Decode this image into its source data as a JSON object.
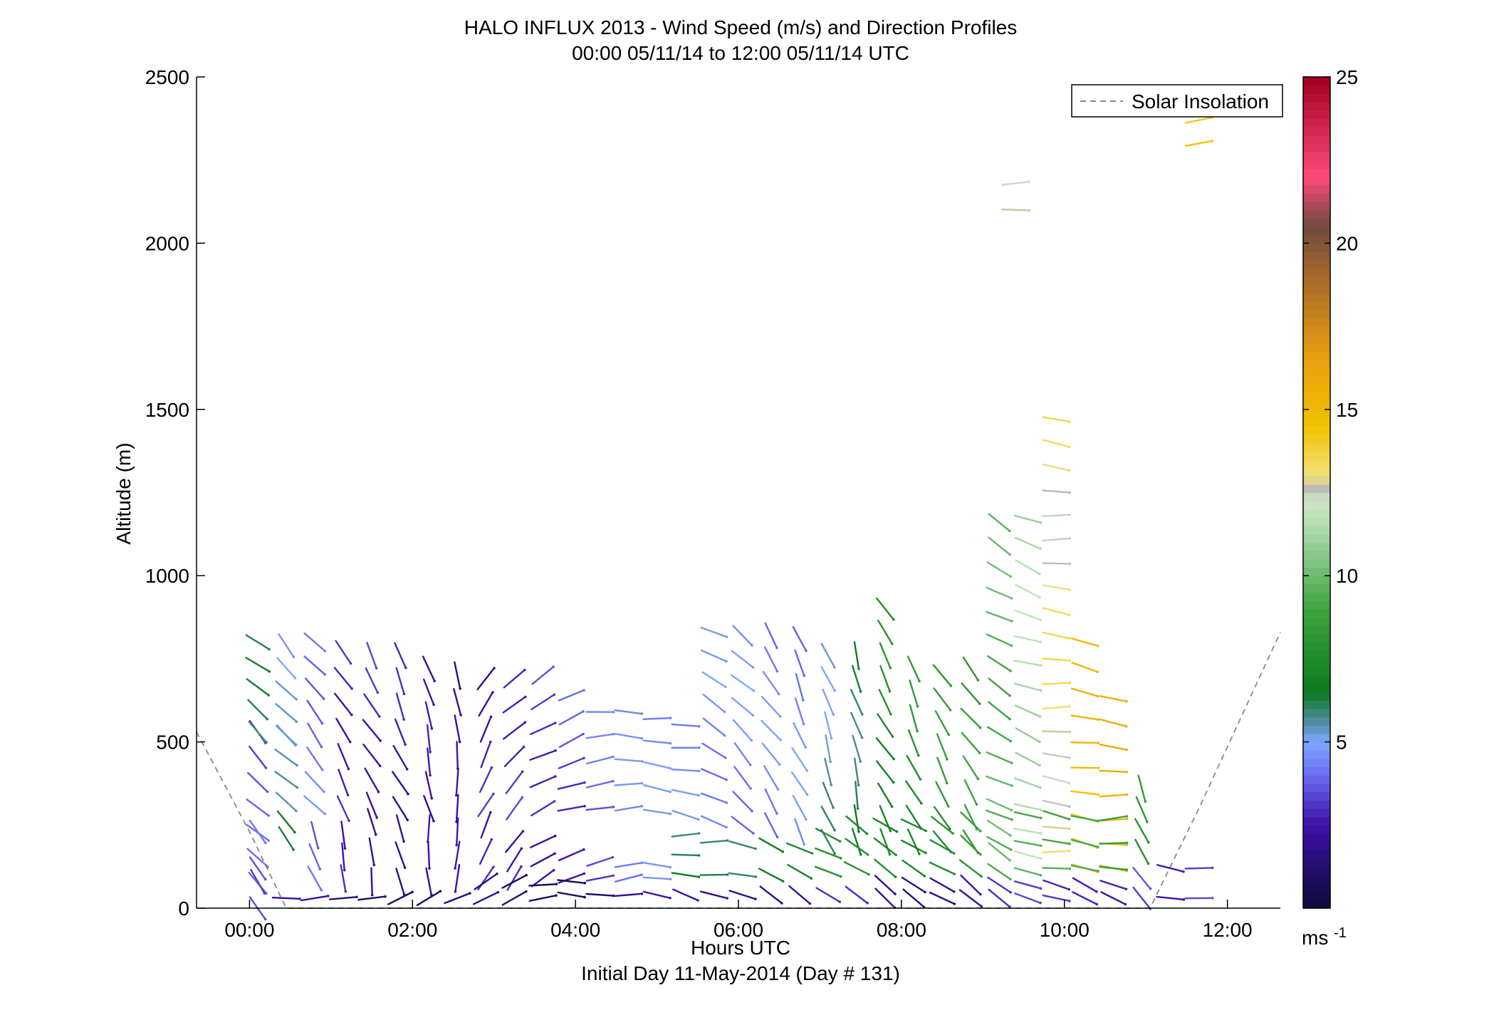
{
  "chart_data": {
    "type": "scatter",
    "plot_kind": "wind barbs / direction sticks colored by speed",
    "title": "HALO INFLUX 2013 - Wind Speed (m/s) and Direction Profiles",
    "subtitle": "00:00 05/11/14 to 12:00 05/11/14  UTC",
    "xlabel": "Hours UTC",
    "xlabel2": "Initial Day 11-May-2014 (Day # 131)",
    "ylabel": "Altitude (m)",
    "xlim": [
      -0.65,
      12.65
    ],
    "ylim": [
      0,
      2500
    ],
    "x_ticks": [
      0,
      2,
      4,
      6,
      8,
      10,
      12
    ],
    "x_tick_labels": [
      "00:00",
      "02:00",
      "04:00",
      "06:00",
      "08:00",
      "10:00",
      "12:00"
    ],
    "y_ticks": [
      0,
      500,
      1000,
      1500,
      2000,
      2500
    ],
    "y_tick_labels": [
      "0",
      "500",
      "1000",
      "1500",
      "2000",
      "2500"
    ],
    "grid": false,
    "legend_position": "top-right",
    "legend": [
      {
        "label": "Solar Insolation",
        "style": "dashed",
        "color": "#888888"
      }
    ],
    "colorbar": {
      "range": [
        0,
        25
      ],
      "ticks": [
        5,
        10,
        15,
        20,
        25
      ],
      "tick_labels": [
        "5",
        "10",
        "15",
        "20",
        "25"
      ],
      "units_label": "ms",
      "units_superscript": "-1",
      "stops": [
        [
          0,
          "#0b0b3a"
        ],
        [
          2.5,
          "#3d10a8"
        ],
        [
          4.0,
          "#6b6cf0"
        ],
        [
          5.0,
          "#7fa7ff"
        ],
        [
          5.6,
          "#4f8ea0"
        ],
        [
          6.5,
          "#0b7a1f"
        ],
        [
          9.0,
          "#3fa43f"
        ],
        [
          11.5,
          "#b0dcb0"
        ],
        [
          12.3,
          "#cfe6c8"
        ],
        [
          12.6,
          "#b9b9b9"
        ],
        [
          13.0,
          "#f0e27a"
        ],
        [
          14.5,
          "#f2c200"
        ],
        [
          16.5,
          "#e8a010"
        ],
        [
          19.0,
          "#a8682a"
        ],
        [
          20.5,
          "#6e4a3e"
        ],
        [
          22.0,
          "#ff4a7a"
        ],
        [
          25.0,
          "#a0001e"
        ]
      ]
    },
    "solar_insolation": [
      {
        "x": -0.65,
        "y": 530
      },
      {
        "x": 0.0,
        "y": 230
      },
      {
        "x": 0.45,
        "y": 0
      },
      {
        "x": 11.05,
        "y": 0
      },
      {
        "x": 11.65,
        "y": 300
      },
      {
        "x": 12.65,
        "y": 830
      }
    ],
    "profiles": [
      {
        "x": 0.1,
        "segments": [
          [
            0,
            530,
            3.5,
            135
          ],
          [
            530,
            800,
            5.8,
            130
          ],
          [
            230,
            230,
            4.2,
            135
          ],
          [
            80,
            120,
            3.2,
            140
          ]
        ]
      },
      {
        "x": 0.45,
        "segments": [
          [
            320,
            520,
            5.0,
            135
          ],
          [
            520,
            790,
            4.8,
            140
          ],
          [
            210,
            260,
            5.8,
            150
          ],
          [
            30,
            30,
            1.6,
            95
          ]
        ]
      },
      {
        "x": 0.8,
        "segments": [
          [
            310,
            800,
            4.2,
            140
          ],
          [
            90,
            220,
            3.6,
            160
          ],
          [
            30,
            30,
            1.8,
            90
          ]
        ]
      },
      {
        "x": 1.15,
        "segments": [
          [
            300,
            770,
            3.0,
            150
          ],
          [
            90,
            220,
            2.9,
            165
          ],
          [
            30,
            40,
            1.5,
            80
          ]
        ]
      },
      {
        "x": 1.5,
        "segments": [
          [
            310,
            760,
            2.8,
            150
          ],
          [
            80,
            260,
            2.6,
            170
          ],
          [
            30,
            50,
            1.4,
            75
          ]
        ]
      },
      {
        "x": 1.85,
        "segments": [
          [
            300,
            760,
            2.4,
            155
          ],
          [
            80,
            240,
            2.3,
            170
          ],
          [
            30,
            60,
            1.3,
            70
          ]
        ]
      },
      {
        "x": 2.2,
        "segments": [
          [
            300,
            720,
            2.2,
            165
          ],
          [
            80,
            240,
            2.2,
            175
          ],
          [
            30,
            60,
            1.1,
            65
          ]
        ]
      },
      {
        "x": 2.55,
        "segments": [
          [
            300,
            700,
            2.0,
            175
          ],
          [
            90,
            230,
            2.0,
            180
          ],
          [
            30,
            60,
            1.0,
            60
          ]
        ]
      },
      {
        "x": 2.9,
        "segments": [
          [
            310,
            690,
            2.6,
            30
          ],
          [
            90,
            250,
            2.4,
            30
          ],
          [
            30,
            80,
            1.2,
            60
          ]
        ]
      },
      {
        "x": 3.25,
        "segments": [
          [
            300,
            690,
            3.2,
            45
          ],
          [
            90,
            200,
            2.7,
            40
          ],
          [
            30,
            80,
            1.2,
            70
          ]
        ]
      },
      {
        "x": 3.6,
        "segments": [
          [
            300,
            700,
            3.3,
            60
          ],
          [
            90,
            200,
            2.8,
            55
          ],
          [
            30,
            70,
            1.2,
            80
          ]
        ]
      },
      {
        "x": 3.95,
        "segments": [
          [
            300,
            640,
            3.4,
            70
          ],
          [
            90,
            160,
            3.0,
            60
          ],
          [
            40,
            80,
            1.3,
            90
          ]
        ]
      },
      {
        "x": 4.3,
        "segments": [
          [
            300,
            590,
            3.9,
            85
          ],
          [
            90,
            140,
            3.4,
            80
          ],
          [
            40,
            70,
            1.5,
            95
          ]
        ]
      },
      {
        "x": 4.65,
        "segments": [
          [
            300,
            590,
            4.2,
            90
          ],
          [
            90,
            130,
            3.8,
            85
          ],
          [
            40,
            70,
            1.7,
            95
          ]
        ]
      },
      {
        "x": 5.0,
        "segments": [
          [
            290,
            570,
            4.6,
            95
          ],
          [
            90,
            130,
            4.1,
            90
          ],
          [
            40,
            70,
            2.0,
            100
          ]
        ]
      },
      {
        "x": 5.35,
        "segments": [
          [
            280,
            550,
            4.8,
            100
          ],
          [
            100,
            220,
            6.1,
            90
          ],
          [
            40,
            60,
            2.1,
            105
          ]
        ]
      },
      {
        "x": 5.7,
        "segments": [
          [
            260,
            830,
            4.6,
            120
          ],
          [
            100,
            200,
            6.4,
            95
          ],
          [
            40,
            60,
            2.1,
            110
          ]
        ]
      },
      {
        "x": 6.05,
        "segments": [
          [
            250,
            820,
            4.4,
            135
          ],
          [
            100,
            190,
            6.6,
            105
          ],
          [
            40,
            60,
            2.2,
            115
          ]
        ]
      },
      {
        "x": 6.4,
        "segments": [
          [
            250,
            820,
            4.3,
            145
          ],
          [
            100,
            190,
            6.9,
            110
          ],
          [
            40,
            60,
            2.2,
            120
          ]
        ]
      },
      {
        "x": 6.75,
        "segments": [
          [
            230,
            810,
            4.4,
            155
          ],
          [
            110,
            180,
            7.1,
            115
          ],
          [
            40,
            70,
            2.2,
            125
          ]
        ]
      },
      {
        "x": 7.1,
        "segments": [
          [
            200,
            760,
            5.5,
            160
          ],
          [
            110,
            220,
            7.2,
            120
          ],
          [
            40,
            70,
            2.4,
            130
          ]
        ]
      },
      {
        "x": 7.45,
        "segments": [
          [
            200,
            760,
            6.3,
            165
          ],
          [
            120,
            250,
            7.4,
            120
          ],
          [
            40,
            70,
            2.4,
            130
          ]
        ]
      },
      {
        "x": 7.8,
        "segments": [
          [
            200,
            900,
            7.4,
            150
          ],
          [
            120,
            250,
            7.6,
            120
          ],
          [
            30,
            70,
            2.2,
            125
          ]
        ]
      },
      {
        "x": 8.15,
        "segments": [
          [
            200,
            720,
            7.8,
            155
          ],
          [
            120,
            250,
            7.8,
            125
          ],
          [
            30,
            70,
            2.2,
            130
          ]
        ]
      },
      {
        "x": 8.5,
        "segments": [
          [
            200,
            700,
            8.1,
            150
          ],
          [
            120,
            250,
            8.0,
            125
          ],
          [
            30,
            70,
            2.3,
            125
          ]
        ]
      },
      {
        "x": 8.85,
        "segments": [
          [
            200,
            720,
            8.4,
            145
          ],
          [
            120,
            260,
            8.2,
            125
          ],
          [
            30,
            70,
            2.3,
            125
          ]
        ]
      },
      {
        "x": 9.2,
        "segments": [
          [
            170,
            1160,
            9.5,
            120
          ],
          [
            110,
            280,
            8.8,
            115
          ],
          [
            30,
            70,
            2.5,
            120
          ]
        ]
      },
      {
        "x": 9.55,
        "segments": [
          [
            160,
            1170,
            11.4,
            110
          ],
          [
            110,
            280,
            9.1,
            110
          ],
          [
            30,
            70,
            2.8,
            115
          ]
        ]
      },
      {
        "x": 9.9,
        "segments": [
          [
            170,
            1470,
            13.0,
            95
          ],
          [
            120,
            280,
            9.3,
            100
          ],
          [
            30,
            70,
            3.0,
            110
          ]
        ]
      },
      {
        "x": 10.25,
        "segments": [
          [
            120,
            800,
            14.8,
            100
          ],
          [
            120,
            270,
            9.7,
            95
          ],
          [
            30,
            70,
            3.2,
            110
          ]
        ]
      },
      {
        "x": 10.6,
        "segments": [
          [
            120,
            630,
            15.3,
            95
          ],
          [
            120,
            270,
            8.9,
            90
          ],
          [
            30,
            70,
            3.2,
            110
          ]
        ]
      },
      {
        "x": 10.95,
        "segments": [
          [
            170,
            360,
            7.8,
            160
          ],
          [
            30,
            90,
            3.5,
            150
          ]
        ]
      },
      {
        "x": 11.3,
        "segments": [
          [
            30,
            120,
            2.1,
            100
          ]
        ]
      },
      {
        "x": 11.65,
        "segments": [
          [
            30,
            120,
            2.8,
            80
          ],
          [
            2300,
            2370,
            13.8,
            70
          ]
        ]
      },
      {
        "x": 9.4,
        "segments": [
          [
            2100,
            2180,
            12.4,
            90
          ]
        ]
      }
    ]
  }
}
